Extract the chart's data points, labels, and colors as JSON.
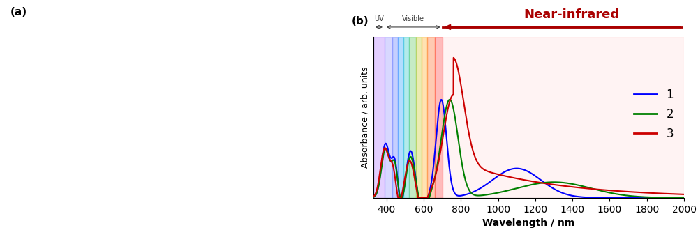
{
  "title_b": "(b)",
  "xlabel": "Wavelength / nm",
  "ylabel": "Absorbance / arb. units",
  "xlim": [
    330,
    2000
  ],
  "ylim": [
    0,
    1.15
  ],
  "x_ticks": [
    400,
    600,
    800,
    1000,
    1200,
    1400,
    1600,
    1800,
    2000
  ],
  "colors": {
    "curve1": "#0000FF",
    "curve2": "#008000",
    "curve3": "#CC0000"
  },
  "near_ir_color": "#AA0000",
  "label_color": "#404040",
  "uv_band_color": "#C8A0FF",
  "uv_band_alpha": 0.5,
  "nir_band_color": "#FFB0B0",
  "nir_band_alpha": 0.15,
  "vis_bands": [
    [
      390,
      430,
      "#8080FF",
      0.3
    ],
    [
      430,
      460,
      "#4060FF",
      0.3
    ],
    [
      460,
      490,
      "#0090FF",
      0.3
    ],
    [
      490,
      520,
      "#00C0C0",
      0.3
    ],
    [
      520,
      560,
      "#40C040",
      0.3
    ],
    [
      560,
      590,
      "#C0C000",
      0.3
    ],
    [
      590,
      620,
      "#FFA000",
      0.3
    ],
    [
      620,
      660,
      "#FF5000",
      0.3
    ],
    [
      660,
      700,
      "#FF2020",
      0.3
    ]
  ],
  "uv_region": [
    330,
    390
  ],
  "vis_region": [
    390,
    700
  ],
  "nir_region": [
    700,
    2000
  ],
  "legend_labels": [
    "1",
    "2",
    "3"
  ],
  "uv_label": "UV",
  "vis_label": "Visible",
  "nir_label": "Near-infrared"
}
